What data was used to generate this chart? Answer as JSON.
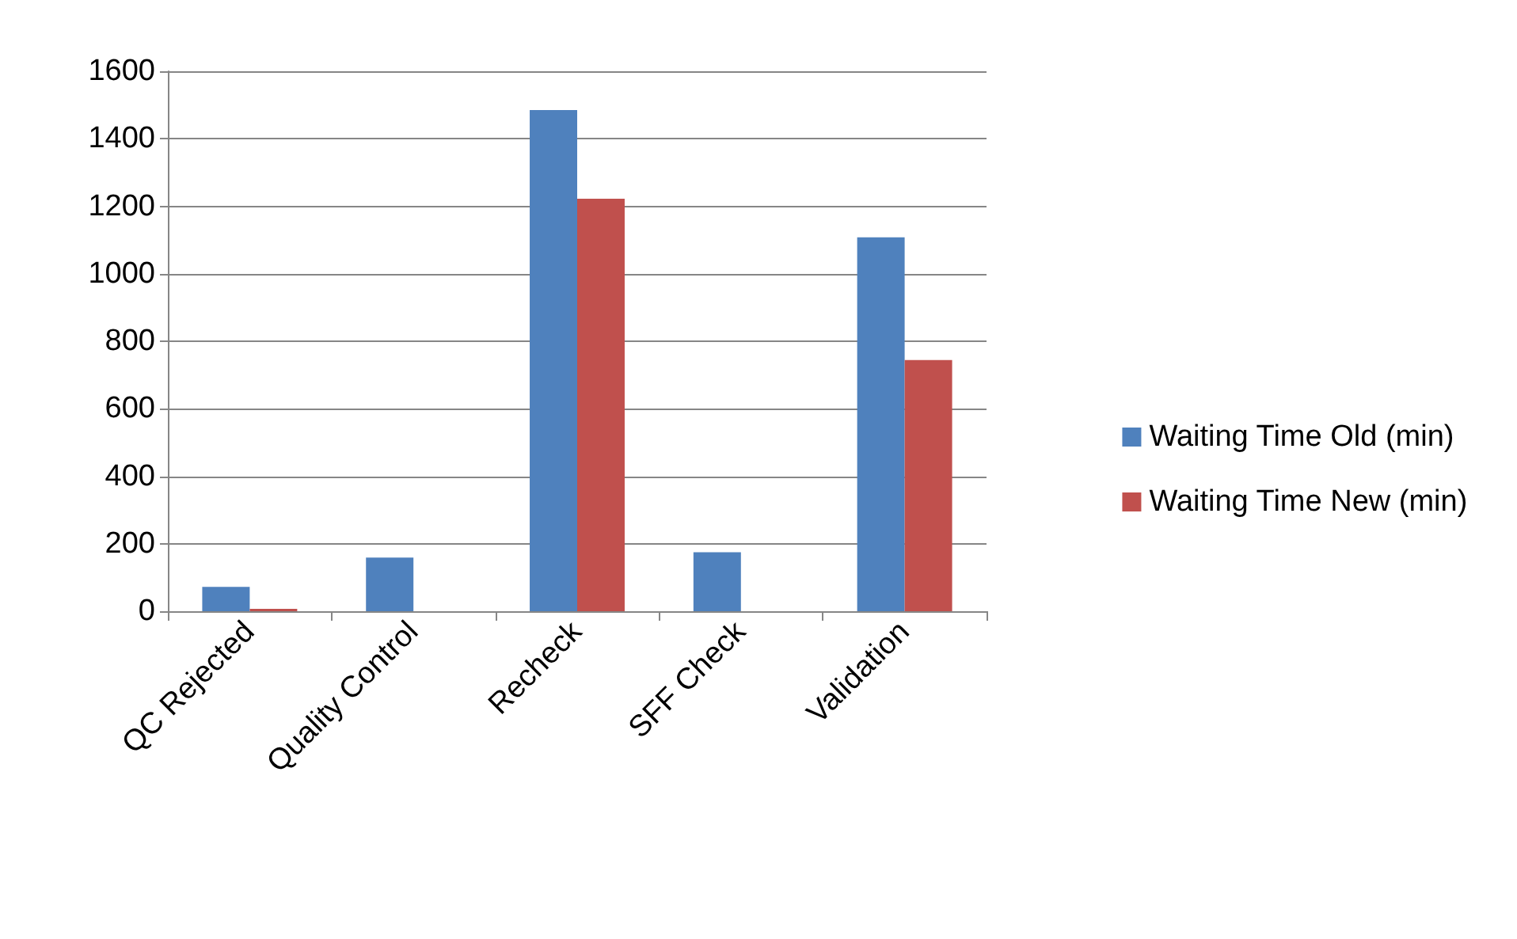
{
  "chart_data": {
    "type": "bar",
    "categories": [
      "QC Rejected",
      "Quality Control",
      "Recheck",
      "SFF Check",
      "Validation"
    ],
    "series": [
      {
        "name": "Waiting Time Old (min)",
        "color": "#4f81bd",
        "values": [
          72,
          159,
          1485,
          175,
          1108
        ]
      },
      {
        "name": "Waiting Time New (min)",
        "color": "#c0504d",
        "values": [
          7,
          0,
          1222,
          0,
          744
        ]
      }
    ],
    "ylim": [
      0,
      1600
    ],
    "yticks": [
      0,
      200,
      400,
      600,
      800,
      1000,
      1200,
      1400,
      1600
    ],
    "grid": "y",
    "legend": "right"
  }
}
